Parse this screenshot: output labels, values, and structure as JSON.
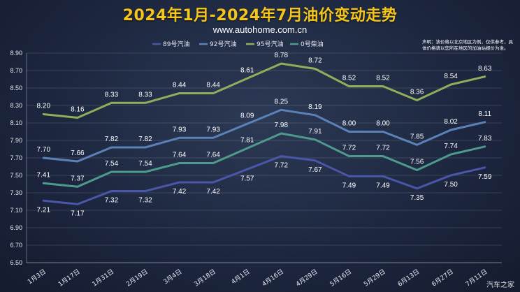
{
  "chart_data": {
    "type": "line",
    "title": "2024年1月-2024年7月油价变动走势",
    "subtitle": "www.autohome.com.cn",
    "note": "声明：该价格以北京地区为例，仅供参考，具体价格请以您所在地区的加油站报价为准。",
    "watermark": "汽车之家",
    "categories": [
      "1月3日",
      "1月17日",
      "1月31日",
      "2月19日",
      "3月4日",
      "3月18日",
      "4月1日",
      "4月16日",
      "4月29日",
      "5月16日",
      "5月29日",
      "6月13日",
      "6月27日",
      "7月11日"
    ],
    "y_ticks": [
      "6.50",
      "6.70",
      "6.90",
      "7.10",
      "7.30",
      "7.50",
      "7.70",
      "7.90",
      "8.10",
      "8.30",
      "8.50",
      "8.70",
      "8.90"
    ],
    "ylim": [
      6.5,
      8.9
    ],
    "grid": true,
    "legend_position": "top-center",
    "series": [
      {
        "name": "89号汽油",
        "color": "#4a57a8",
        "label_pos": "below",
        "values": [
          7.21,
          7.17,
          7.32,
          7.32,
          7.42,
          7.42,
          7.57,
          7.72,
          7.67,
          7.49,
          7.49,
          7.35,
          7.5,
          7.59
        ],
        "labels": [
          "7.21",
          "7.17",
          "7.32",
          "7.32",
          "7.42",
          "7.42",
          "7.57",
          "7.72",
          "7.67",
          "7.49",
          "7.49",
          "7.35",
          "7.50",
          "7.59"
        ]
      },
      {
        "name": "92号汽油",
        "color": "#5b82b8",
        "label_pos": "above",
        "values": [
          7.7,
          7.66,
          7.82,
          7.82,
          7.93,
          7.93,
          8.09,
          8.25,
          8.19,
          8.0,
          8.0,
          7.85,
          8.02,
          8.11
        ],
        "labels": [
          "7.70",
          "7.66",
          "7.82",
          "7.82",
          "7.93",
          "7.93",
          "8.09",
          "8.25",
          "8.19",
          "8.00",
          "8.00",
          "7.85",
          "8.02",
          "8.11"
        ]
      },
      {
        "name": "95号汽油",
        "color": "#8fae5a",
        "label_pos": "above",
        "values": [
          8.2,
          8.16,
          8.33,
          8.33,
          8.44,
          8.44,
          8.61,
          8.78,
          8.72,
          8.52,
          8.52,
          8.36,
          8.54,
          8.63
        ],
        "labels": [
          "8.20",
          "8.16",
          "8.33",
          "8.33",
          "8.44",
          "8.44",
          "8.61",
          "8.78",
          "8.72",
          "8.52",
          "8.52",
          "8.36",
          "8.54",
          "8.63"
        ]
      },
      {
        "name": "0号柴油",
        "color": "#4e9a8c",
        "label_pos": "above",
        "values": [
          7.41,
          7.37,
          7.54,
          7.54,
          7.64,
          7.64,
          7.81,
          7.98,
          7.91,
          7.72,
          7.72,
          7.56,
          7.74,
          7.83
        ],
        "labels": [
          "7.41",
          "7.37",
          "7.54",
          "7.54",
          "7.64",
          "7.64",
          "7.81",
          "7.98",
          "7.91",
          "7.72",
          "7.72",
          "7.56",
          "7.74",
          "7.83"
        ]
      }
    ]
  }
}
